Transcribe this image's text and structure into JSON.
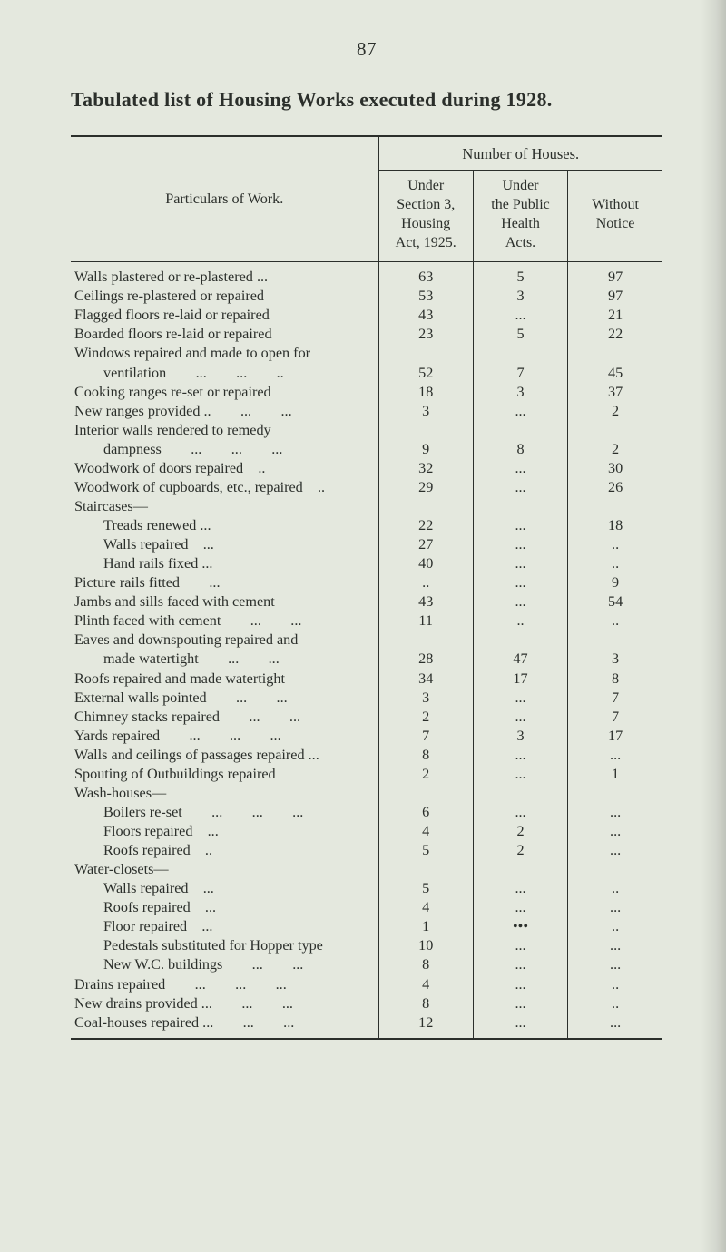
{
  "pageNumber": "87",
  "title": "Tabulated list of Housing Works executed during 1928.",
  "headers": {
    "particulars": "Particulars of Work.",
    "superNumber": "Number of Houses.",
    "col1_l1": "Under",
    "col1_l2": "Section 3,",
    "col1_l3": "Housing",
    "col1_l4": "Act, 1925.",
    "col2_l1": "Under",
    "col2_l2": "the Public",
    "col2_l3": "Health",
    "col2_l4": "Acts.",
    "col3_l1": "Without",
    "col3_l2": "Notice"
  },
  "rows": [
    {
      "label": "Walls plastered or re-plastered ...",
      "a": "63",
      "b": "5",
      "c": "97"
    },
    {
      "label": "Ceilings re-plastered or repaired",
      "a": "53",
      "b": "3",
      "c": "97"
    },
    {
      "label": "Flagged floors re-laid or repaired",
      "a": "43",
      "b": "...",
      "c": "21"
    },
    {
      "label": "Boarded floors re-laid or repaired",
      "a": "23",
      "b": "5",
      "c": "22"
    },
    {
      "label": "Windows repaired and made to open for",
      "a": "",
      "b": "",
      "c": ""
    },
    {
      "label": "ventilation  ...  ...  ..",
      "indent": "indent2",
      "a": "52",
      "b": "7",
      "c": "45"
    },
    {
      "label": "Cooking ranges re-set or repaired",
      "a": "18",
      "b": "3",
      "c": "37"
    },
    {
      "label": "New ranges provided ..  ...  ...",
      "a": "3",
      "b": "...",
      "c": "2"
    },
    {
      "label": "Interior walls rendered to remedy",
      "a": "",
      "b": "",
      "c": ""
    },
    {
      "label": "dampness  ...  ...  ...",
      "indent": "indent2",
      "a": "9",
      "b": "8",
      "c": "2"
    },
    {
      "label": "Woodwork of doors repaired ..",
      "a": "32",
      "b": "...",
      "c": "30"
    },
    {
      "label": "Woodwork of cupboards, etc., repaired ..",
      "a": "29",
      "b": "...",
      "c": "26"
    },
    {
      "label": "Staircases—",
      "a": "",
      "b": "",
      "c": ""
    },
    {
      "label": "Treads renewed ...",
      "indent": "indent1",
      "a": "22",
      "b": "...",
      "c": "18"
    },
    {
      "label": "Walls repaired ...",
      "indent": "indent1",
      "a": "27",
      "b": "...",
      "c": ".."
    },
    {
      "label": "Hand rails fixed ...",
      "indent": "indent1",
      "a": "40",
      "b": "...",
      "c": ".."
    },
    {
      "label": "Picture rails fitted  ...",
      "a": "..",
      "b": "...",
      "c": "9"
    },
    {
      "label": "Jambs and sills faced with cement",
      "a": "43",
      "b": "...",
      "c": "54"
    },
    {
      "label": "Plinth faced with cement  ...  ...",
      "a": "11",
      "b": "..",
      "c": ".."
    },
    {
      "label": "Eaves and downspouting repaired and",
      "a": "",
      "b": "",
      "c": ""
    },
    {
      "label": "made watertight  ...  ...",
      "indent": "indent2",
      "a": "28",
      "b": "47",
      "c": "3"
    },
    {
      "label": "Roofs repaired and made watertight",
      "a": "34",
      "b": "17",
      "c": "8"
    },
    {
      "label": "External walls pointed  ...  ...",
      "a": "3",
      "b": "...",
      "c": "7"
    },
    {
      "label": "Chimney stacks repaired  ...  ...",
      "a": "2",
      "b": "...",
      "c": "7"
    },
    {
      "label": "Yards repaired  ...  ...  ...",
      "a": "7",
      "b": "3",
      "c": "17"
    },
    {
      "label": "Walls and ceilings of passages repaired ...",
      "a": "8",
      "b": "...",
      "c": "..."
    },
    {
      "label": "Spouting of Outbuildings repaired",
      "a": "2",
      "b": "...",
      "c": "1"
    },
    {
      "label": "Wash-houses—",
      "a": "",
      "b": "",
      "c": ""
    },
    {
      "label": "Boilers re-set  ...  ...  ...",
      "indent": "indent1",
      "a": "6",
      "b": "...",
      "c": "..."
    },
    {
      "label": "Floors repaired ...",
      "indent": "indent1",
      "a": "4",
      "b": "2",
      "c": "..."
    },
    {
      "label": "Roofs repaired ..",
      "indent": "indent1",
      "a": "5",
      "b": "2",
      "c": "..."
    },
    {
      "label": "Water-closets—",
      "a": "",
      "b": "",
      "c": ""
    },
    {
      "label": "Walls repaired ...",
      "indent": "indent1",
      "a": "5",
      "b": "...",
      "c": ".."
    },
    {
      "label": "Roofs repaired ...",
      "indent": "indent1",
      "a": "4",
      "b": "...",
      "c": "..."
    },
    {
      "label": "Floor repaired ...",
      "indent": "indent1",
      "a": "1",
      "b": "•••",
      "c": ".."
    },
    {
      "label": "Pedestals substituted for Hopper type",
      "indent": "indent1",
      "a": "10",
      "b": "...",
      "c": "..."
    },
    {
      "label": "New W.C. buildings  ...  ...",
      "indent": "indent1",
      "a": "8",
      "b": "...",
      "c": "..."
    },
    {
      "label": "Drains repaired  ...  ...  ...",
      "a": "4",
      "b": "...",
      "c": ".."
    },
    {
      "label": "New drains provided ...  ...  ...",
      "a": "8",
      "b": "...",
      "c": ".."
    },
    {
      "label": "Coal-houses repaired ...  ...  ...",
      "a": "12",
      "b": "...",
      "c": "..."
    }
  ],
  "style": {
    "pageBg": "#e4e8de",
    "textColor": "#2b2f2b",
    "ruleColor": "#2b2f2b",
    "fontFamily": "Georgia, 'Times New Roman', serif",
    "bodyFontSize": 16.2,
    "titleFontSize": 22,
    "pageWidth": 800,
    "pageHeight": 1380
  }
}
